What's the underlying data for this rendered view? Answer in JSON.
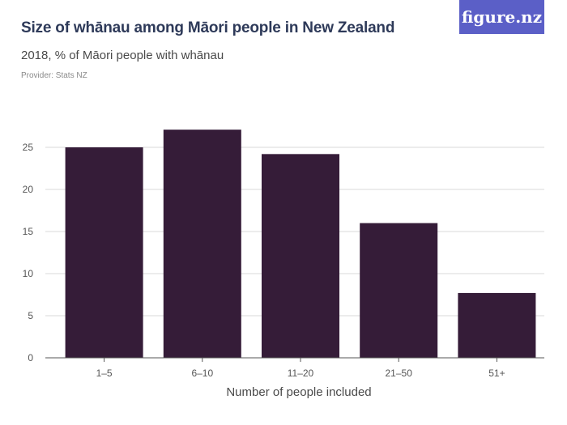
{
  "header": {
    "title": "Size of whānau among Māori people in New Zealand",
    "subtitle": "2018, % of Māori people with whānau",
    "provider": "Provider: Stats NZ"
  },
  "logo": {
    "text": "figure.nz",
    "color": "#5b5fc7"
  },
  "chart_data": {
    "type": "bar",
    "categories": [
      "1–5",
      "6–10",
      "11–20",
      "21–50",
      "51+"
    ],
    "values": [
      25.0,
      27.1,
      24.2,
      16.0,
      7.7
    ],
    "xlabel": "Number of people included",
    "ylabel": "",
    "ylim": [
      0,
      30
    ],
    "yticks": [
      0,
      5,
      10,
      15,
      20,
      25
    ],
    "grid": true,
    "bar_color": "#351c38"
  }
}
